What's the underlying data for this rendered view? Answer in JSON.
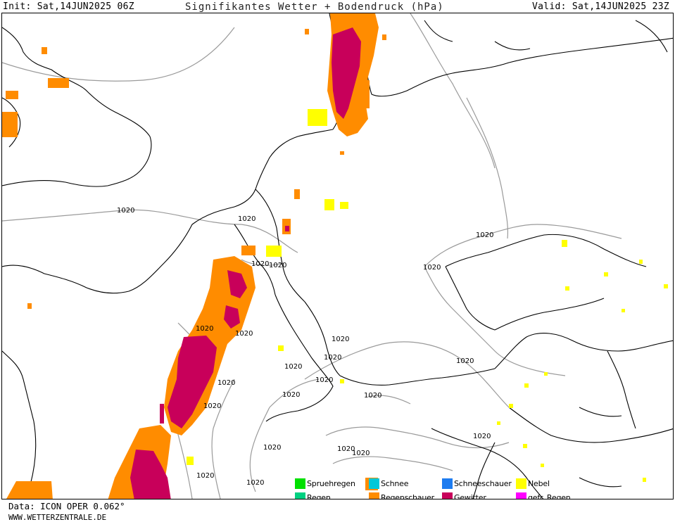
{
  "header": {
    "init": "Init: Sat,14JUN2025 06Z",
    "title": "Signifikantes Wetter + Bodendruck (hPa)",
    "valid": "Valid: Sat,14JUN2025 23Z"
  },
  "isobar_labels": [
    "1020",
    "1020",
    "1020",
    "1020",
    "1020",
    "1020",
    "1020",
    "1020",
    "1020",
    "1020",
    "1020",
    "1020",
    "1020",
    "1020",
    "1020",
    "1020",
    "1020",
    "1020",
    "1020",
    "1020",
    "1020",
    "1020"
  ],
  "legend": {
    "items": [
      {
        "label": "Spruehregen",
        "color": "#00e000"
      },
      {
        "label": "Regen",
        "color": "#00d080"
      },
      {
        "label": "Schnee",
        "color": "#00c8d8"
      },
      {
        "label": "Regenschauer",
        "color": "#ff8c00"
      },
      {
        "label": "Schneeschauer",
        "color": "#1e7cf0"
      },
      {
        "label": "Gewitter",
        "color": "#c8005a"
      },
      {
        "label": "Nebel",
        "color": "#ffff00"
      },
      {
        "label": "gefr. Regen",
        "color": "#ff00ff"
      }
    ]
  },
  "footer": {
    "data": "Data: ICON OPER 0.062°",
    "site": "WWW.WETTERZENTRALE.DE"
  }
}
